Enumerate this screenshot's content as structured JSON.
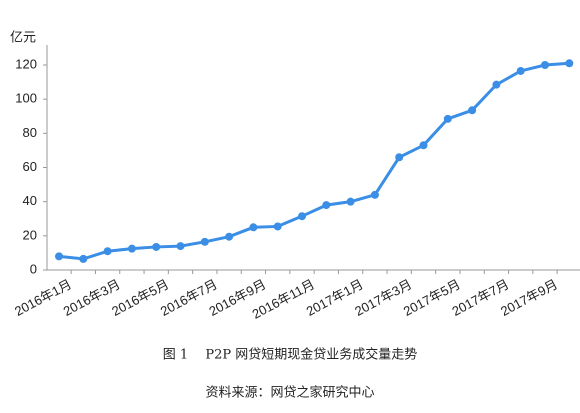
{
  "chart_data": {
    "type": "line",
    "y_unit": "亿元",
    "categories": [
      "2016年1月",
      null,
      "2016年3月",
      null,
      "2016年5月",
      null,
      "2016年7月",
      null,
      "2016年9月",
      null,
      "2016年11月",
      null,
      "2017年1月",
      null,
      "2017年3月",
      null,
      "2017年5月",
      null,
      "2017年7月",
      null,
      "2017年9月",
      null
    ],
    "series": [
      {
        "name": "成交量",
        "color": "#3a8ee6",
        "values": [
          8,
          6.5,
          11,
          12.5,
          13.5,
          14,
          16.5,
          19.5,
          25,
          25.5,
          31.5,
          38,
          40,
          44,
          66,
          73,
          88.5,
          93.5,
          108.5,
          116.5,
          120,
          121
        ]
      }
    ],
    "ylim": [
      0,
      120
    ],
    "yticks": [
      0,
      20,
      40,
      60,
      80,
      100,
      120
    ],
    "grid": false,
    "caption": "图 1　 P2P 网贷短期现金贷业务成交量走势",
    "source": "资料来源：网贷之家研究中心"
  }
}
